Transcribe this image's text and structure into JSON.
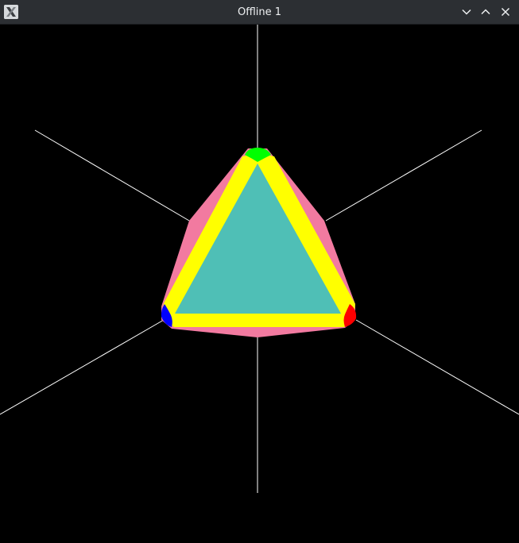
{
  "window": {
    "title": "Offline 1",
    "icon": "xorg-x-icon",
    "controls": [
      "minimize-chevron-down-icon",
      "maximize-chevron-up-icon",
      "close-x-icon"
    ]
  },
  "scene": {
    "background_color": "#000000",
    "axis_line_color": "#ffffff",
    "face_color": "#4fbfb6",
    "edge_color": "#ffff00",
    "outer_face_color": "#f27aa0",
    "vertex_colors": [
      "#00ff00",
      "#ff0000",
      "#0000ff"
    ]
  }
}
